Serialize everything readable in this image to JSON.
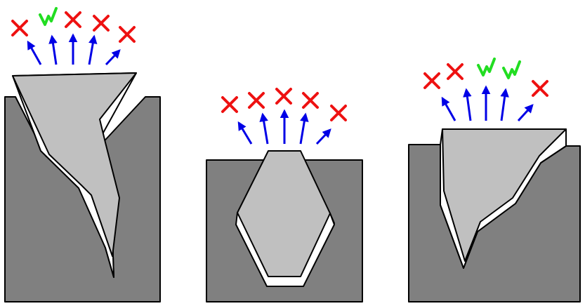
{
  "colors": {
    "block": "#808080",
    "part": "#c0c0c0",
    "outline": "#000000",
    "gap": "#ffffff",
    "arrow": "#0000e6",
    "valid": "#22dd22",
    "blocked": "#ee1111"
  },
  "symbols": {
    "valid_icon": "check-mark-icon",
    "blocked_icon": "cross-mark-icon"
  },
  "panels": [
    {
      "name": "panel-1",
      "direction_results": [
        "blocked",
        "valid",
        "blocked",
        "blocked",
        "blocked"
      ]
    },
    {
      "name": "panel-2",
      "direction_results": [
        "blocked",
        "blocked",
        "blocked",
        "blocked",
        "blocked"
      ]
    },
    {
      "name": "panel-3",
      "direction_results": [
        "blocked",
        "blocked",
        "valid",
        "valid",
        "blocked"
      ]
    }
  ]
}
